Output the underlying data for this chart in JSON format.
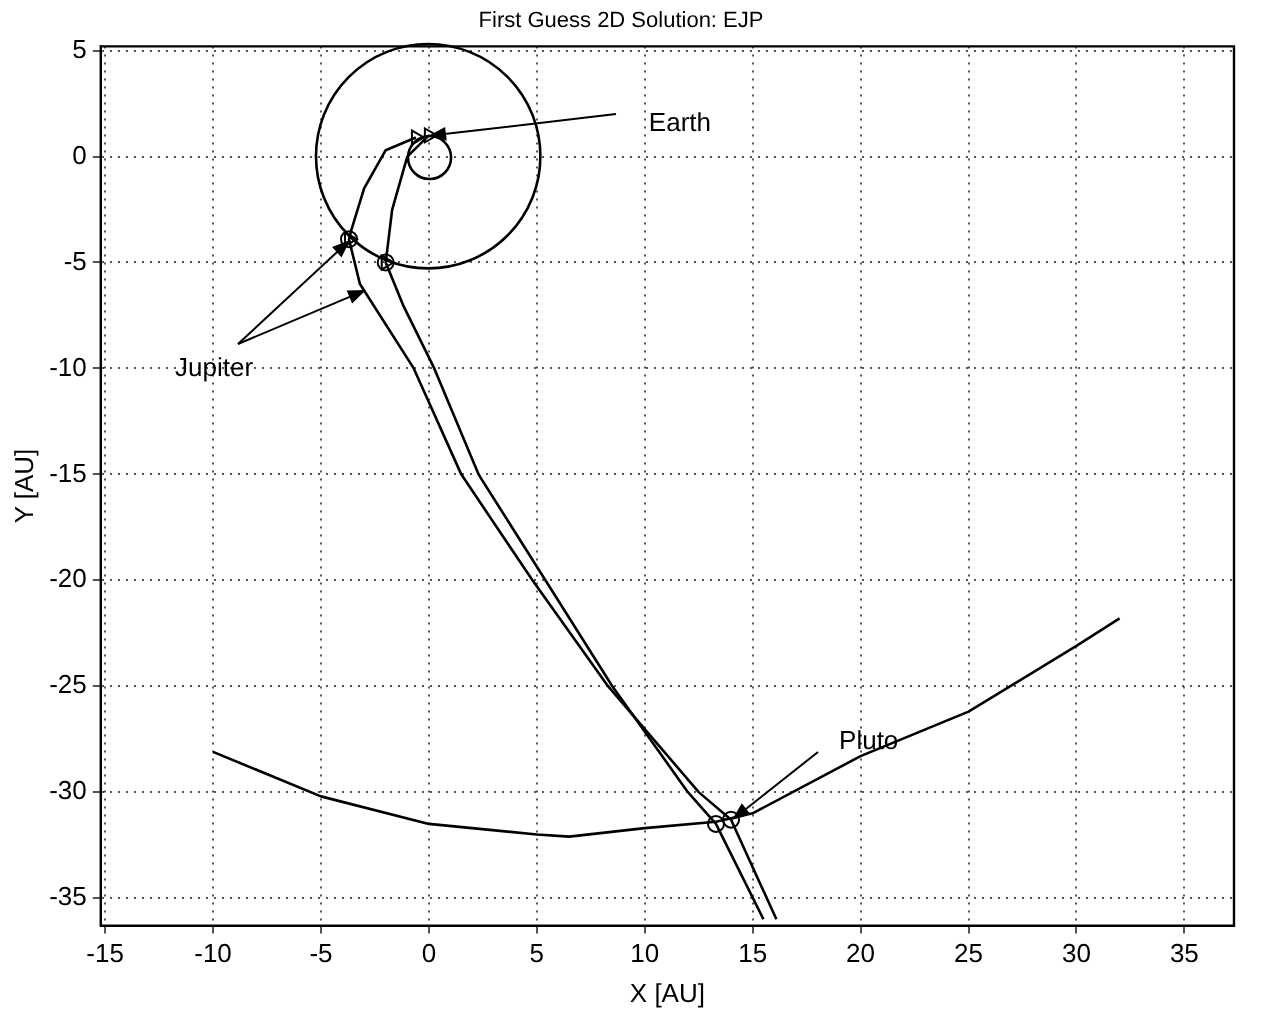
{
  "chart_data": {
    "type": "line",
    "title": "First Guess 2D Solution: EJP",
    "xlabel": "X [AU]",
    "ylabel": "Y [AU]",
    "xlim": [
      -15.2,
      37.3
    ],
    "xticks": [
      -15,
      -10,
      -5,
      0,
      5,
      10,
      15,
      20,
      25,
      30,
      35
    ],
    "ylim": [
      -36.3,
      5.2
    ],
    "yticks": [
      -35,
      -30,
      -25,
      -20,
      -15,
      -10,
      -5,
      0,
      5
    ],
    "grid": true,
    "legend": false,
    "series": [
      {
        "marker": "none",
        "color": "#000000",
        "x": [
          -10,
          -5,
          0,
          5,
          6.5,
          10,
          13.3,
          15,
          20,
          25,
          30,
          32
        ],
        "values": [
          -28.1,
          -30.2,
          -31.5,
          -32,
          -32.1,
          -31.7,
          -31.4,
          -31,
          -28.3,
          -26.2,
          -23.1,
          -21.8
        ]
      },
      {
        "marker": "none",
        "color": "#000000",
        "x": [
          -0.6,
          -2,
          -3,
          -3.6,
          -3.7,
          -3.2,
          -0.7,
          1.5,
          4.8,
          8.3,
          12.5,
          14,
          16.1
        ],
        "values": [
          0.9,
          0.3,
          -1.5,
          -3.5,
          -3.9,
          -6,
          -10,
          -15,
          -20,
          -25,
          -30,
          -31.3,
          -36
        ]
      },
      {
        "marker": "none",
        "color": "#000000",
        "x": [
          0,
          -1,
          -1.7,
          -2,
          -1.2,
          0.25,
          2.3,
          5.4,
          8.5,
          12,
          13.3,
          15.5
        ],
        "values": [
          1,
          0,
          -2.5,
          -5,
          -7,
          -10,
          -15,
          -20,
          -25,
          -30,
          -31.5,
          -36
        ]
      },
      {
        "type": "scatter",
        "marker": "circle",
        "color": "#000000",
        "x": [
          -3.7,
          -2,
          13.3,
          14
        ],
        "values": [
          -3.9,
          -5,
          -31.5,
          -31.3
        ]
      },
      {
        "type": "scatter",
        "marker": "triangle",
        "color": "#000000",
        "x": [
          -0.6,
          0,
          -3.7,
          -2
        ],
        "values": [
          0.9,
          1,
          -3.9,
          -5
        ]
      }
    ],
    "annotations": [
      {
        "text": "Earth",
        "x": 0,
        "y": 1
      },
      {
        "text": "Jupiter",
        "x": -3.7,
        "y": -3.9
      },
      {
        "text": "Pluto",
        "x": 14,
        "y": -31.3
      }
    ]
  }
}
